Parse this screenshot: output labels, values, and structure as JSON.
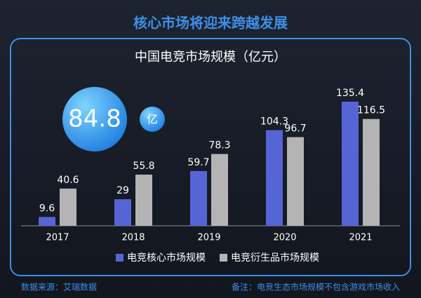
{
  "chart_data": {
    "type": "bar",
    "title": "核心市场将迎来跨越发展",
    "subtitle": "中国电竞市场规模（亿元）",
    "bubble": {
      "value": 84.8,
      "unit": "亿"
    },
    "categories": [
      "2017",
      "2018",
      "2019",
      "2020",
      "2021"
    ],
    "series": [
      {
        "name": "电竞核心市场规模",
        "color": "#5565d6",
        "values": [
          9.6,
          29,
          59.7,
          104.3,
          135.4
        ]
      },
      {
        "name": "电竞衍生品市场规模",
        "color": "#b4b4b4",
        "values": [
          40.6,
          55.8,
          78.3,
          96.7,
          116.5
        ]
      }
    ],
    "source": "数据来源：艾瑞数据",
    "note": "备注：电竞生态市场规模不包含游戏市场收入"
  }
}
